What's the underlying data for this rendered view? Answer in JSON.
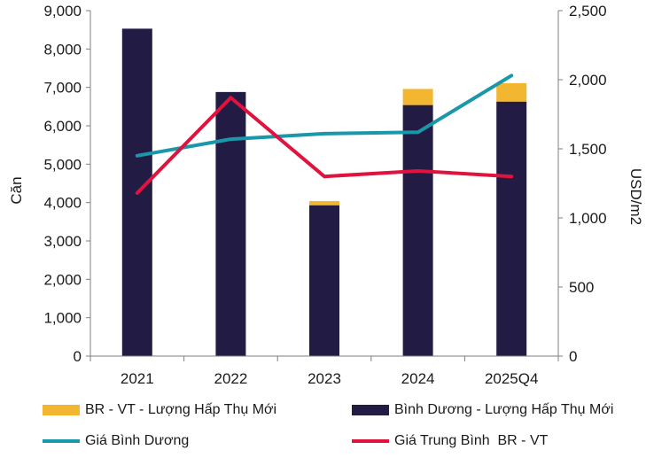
{
  "chart_data": {
    "type": "bar",
    "categories": [
      "2021",
      "2022",
      "2023",
      "2024",
      "2025Q4"
    ],
    "series": [
      {
        "name": "Bình Dương - Lượng Hấp Thụ Mới",
        "kind": "stacked-bar",
        "axis": "left",
        "color": "#221C45",
        "values": [
          8530,
          6880,
          3930,
          6540,
          6630
        ]
      },
      {
        "name": "BR - VT - Lượng Hấp Thụ Mới",
        "kind": "stacked-bar",
        "axis": "left",
        "color": "#F2B631",
        "values": [
          0,
          0,
          110,
          420,
          480
        ]
      },
      {
        "name": "Giá Bình Dương",
        "kind": "line",
        "axis": "right",
        "color": "#1A97A8",
        "values": [
          1450,
          1570,
          1610,
          1620,
          2030
        ]
      },
      {
        "name": "Giá Trung Bình  BR - VT",
        "kind": "line",
        "axis": "right",
        "color": "#E0123E",
        "values": [
          1180,
          1870,
          1300,
          1340,
          1300
        ]
      }
    ],
    "y_left": {
      "label": "Căn",
      "range": [
        0,
        9000
      ],
      "ticks": [
        "0",
        "1,000",
        "2,000",
        "3,000",
        "4,000",
        "5,000",
        "6,000",
        "7,000",
        "8,000",
        "9,000"
      ]
    },
    "y_right": {
      "label": "USD/m2",
      "range": [
        0,
        2500
      ],
      "ticks": [
        "0",
        "500",
        "1,000",
        "1,500",
        "2,000",
        "2,500"
      ]
    },
    "grid": false,
    "legend_position": "bottom"
  }
}
